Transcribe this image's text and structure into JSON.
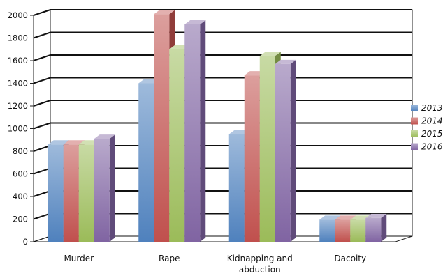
{
  "chart_data": {
    "type": "bar",
    "title": "",
    "xlabel": "",
    "ylabel": "",
    "categories": [
      "Murder",
      "Rape",
      "Kidnapping and abduction",
      "Dacoity"
    ],
    "category_lines": [
      [
        "Murder"
      ],
      [
        "Rape"
      ],
      [
        "Kidnapping and",
        "abduction"
      ],
      [
        "Dacoity"
      ]
    ],
    "series": [
      {
        "name": "2013",
        "values": [
          860,
          1400,
          950,
          195
        ],
        "color": "#4f81bd"
      },
      {
        "name": "2014",
        "values": [
          860,
          2010,
          1470,
          195
        ],
        "color": "#c0504d"
      },
      {
        "name": "2015",
        "values": [
          860,
          1700,
          1640,
          195
        ],
        "color": "#9bbb59"
      },
      {
        "name": "2016",
        "values": [
          910,
          1920,
          1570,
          210
        ],
        "color": "#8064a2"
      }
    ],
    "ylim": [
      0,
      2000
    ],
    "yticks": [
      0,
      200,
      400,
      600,
      800,
      1000,
      1200,
      1400,
      1600,
      1800,
      2000
    ],
    "grid": true,
    "legend_position": "right",
    "style": "3d-clustered-column"
  }
}
